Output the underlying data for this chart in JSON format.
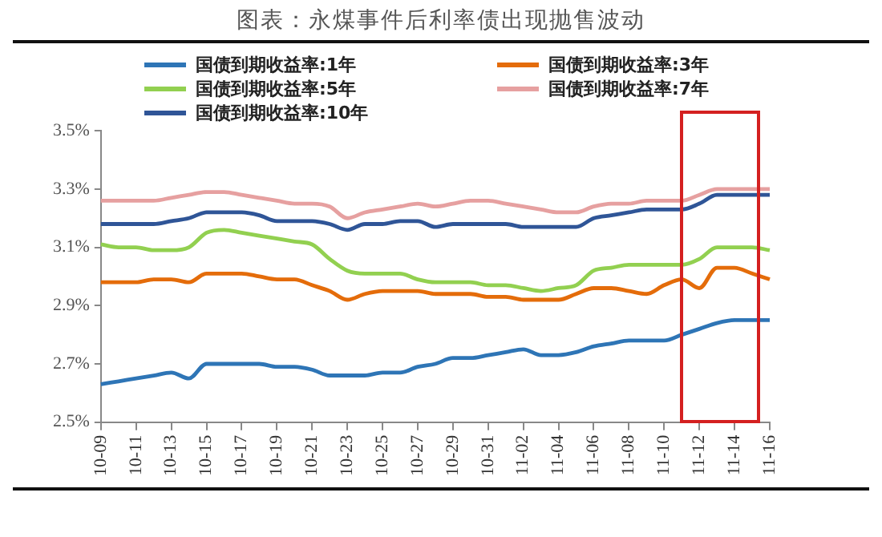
{
  "chart_data": {
    "type": "line",
    "title": "图表：永煤事件后利率债出现抛售波动",
    "categories": [
      "10-09",
      null,
      "10-11",
      null,
      "10-13",
      null,
      "10-15",
      null,
      "10-17",
      null,
      "10-19",
      null,
      "10-21",
      null,
      "10-23",
      null,
      "10-25",
      null,
      "10-27",
      null,
      "10-29",
      null,
      "10-31",
      null,
      "11-02",
      null,
      "11-04",
      null,
      "11-06",
      null,
      "11-08",
      null,
      "11-10",
      null,
      "11-12",
      null,
      "11-14",
      null,
      "11-16"
    ],
    "series": [
      {
        "name": "国债到期收益率:1年",
        "color": "#2e75b6",
        "values": [
          2.63,
          2.64,
          2.65,
          2.66,
          2.67,
          2.65,
          2.7,
          2.7,
          2.7,
          2.7,
          2.69,
          2.69,
          2.68,
          2.66,
          2.66,
          2.66,
          2.67,
          2.67,
          2.69,
          2.7,
          2.72,
          2.72,
          2.73,
          2.74,
          2.75,
          2.73,
          2.73,
          2.74,
          2.76,
          2.77,
          2.78,
          2.78,
          2.78,
          2.8,
          2.82,
          2.84,
          2.85,
          2.85,
          2.85
        ]
      },
      {
        "name": "国债到期收益率:3年",
        "color": "#e46c0a",
        "values": [
          2.98,
          2.98,
          2.98,
          2.99,
          2.99,
          2.98,
          3.01,
          3.01,
          3.01,
          3.0,
          2.99,
          2.99,
          2.97,
          2.95,
          2.92,
          2.94,
          2.95,
          2.95,
          2.95,
          2.94,
          2.94,
          2.94,
          2.93,
          2.93,
          2.92,
          2.92,
          2.92,
          2.94,
          2.96,
          2.96,
          2.95,
          2.94,
          2.97,
          2.99,
          2.96,
          3.03,
          3.03,
          3.01,
          2.99
        ]
      },
      {
        "name": "国债到期收益率:5年",
        "color": "#92d050",
        "values": [
          3.11,
          3.1,
          3.1,
          3.09,
          3.09,
          3.1,
          3.15,
          3.16,
          3.15,
          3.14,
          3.13,
          3.12,
          3.11,
          3.06,
          3.02,
          3.01,
          3.01,
          3.01,
          2.99,
          2.98,
          2.98,
          2.98,
          2.97,
          2.97,
          2.96,
          2.95,
          2.96,
          2.97,
          3.02,
          3.03,
          3.04,
          3.04,
          3.04,
          3.04,
          3.06,
          3.1,
          3.1,
          3.1,
          3.09
        ]
      },
      {
        "name": "国债到期收益率:7年",
        "color": "#e6a0a0",
        "values": [
          3.26,
          3.26,
          3.26,
          3.26,
          3.27,
          3.28,
          3.29,
          3.29,
          3.28,
          3.27,
          3.26,
          3.25,
          3.25,
          3.24,
          3.2,
          3.22,
          3.23,
          3.24,
          3.25,
          3.24,
          3.25,
          3.26,
          3.26,
          3.25,
          3.24,
          3.23,
          3.22,
          3.22,
          3.24,
          3.25,
          3.25,
          3.26,
          3.26,
          3.26,
          3.28,
          3.3,
          3.3,
          3.3,
          3.3
        ]
      },
      {
        "name": "国债到期收益率:10年",
        "color": "#2f5597",
        "values": [
          3.18,
          3.18,
          3.18,
          3.18,
          3.19,
          3.2,
          3.22,
          3.22,
          3.22,
          3.21,
          3.19,
          3.19,
          3.19,
          3.18,
          3.16,
          3.18,
          3.18,
          3.19,
          3.19,
          3.17,
          3.18,
          3.18,
          3.18,
          3.18,
          3.17,
          3.17,
          3.17,
          3.17,
          3.2,
          3.21,
          3.22,
          3.23,
          3.23,
          3.23,
          3.25,
          3.28,
          3.28,
          3.28,
          3.28
        ]
      }
    ],
    "ylim": [
      2.5,
      3.5
    ],
    "yticks": [
      {
        "value": 2.5,
        "label": "2.5%"
      },
      {
        "value": 2.7,
        "label": "2.7%"
      },
      {
        "value": 2.9,
        "label": "2.9%"
      },
      {
        "value": 3.1,
        "label": "3.1%"
      },
      {
        "value": 3.3,
        "label": "3.3%"
      },
      {
        "value": 3.5,
        "label": "3.5%"
      }
    ],
    "grid": false,
    "legend": "top",
    "marker": "none",
    "line_style": "solid"
  }
}
